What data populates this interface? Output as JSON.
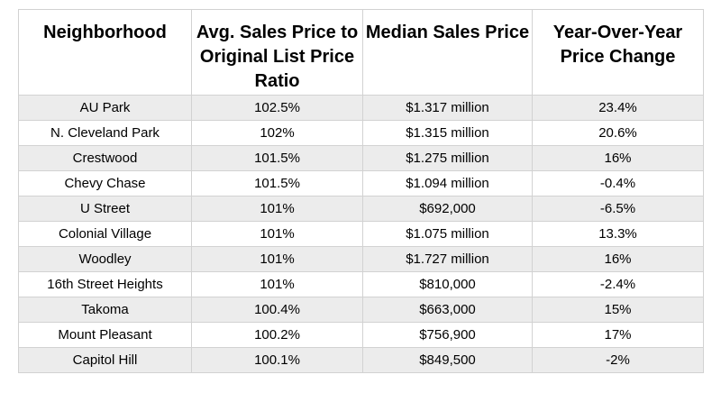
{
  "table": {
    "headers": [
      "Neighborhood",
      "Avg. Sales Price to Original List Price Ratio",
      "Median Sales Price",
      "Year-Over-Year Price Change"
    ],
    "rows": [
      [
        "AU Park",
        "102.5%",
        "$1.317 million",
        "23.4%"
      ],
      [
        "N. Cleveland Park",
        "102%",
        "$1.315 million",
        "20.6%"
      ],
      [
        "Crestwood",
        "101.5%",
        "$1.275 million",
        "16%"
      ],
      [
        "Chevy Chase",
        "101.5%",
        "$1.094 million",
        "-0.4%"
      ],
      [
        "U Street",
        "101%",
        "$692,000",
        "-6.5%"
      ],
      [
        "Colonial Village",
        "101%",
        "$1.075 million",
        "13.3%"
      ],
      [
        "Woodley",
        "101%",
        "$1.727 million",
        "16%"
      ],
      [
        "16th Street Heights",
        "101%",
        "$810,000",
        "-2.4%"
      ],
      [
        "Takoma",
        "100.4%",
        "$663,000",
        "15%"
      ],
      [
        "Mount Pleasant",
        "100.2%",
        "$756,900",
        "17%"
      ],
      [
        "Capitol Hill",
        "100.1%",
        "$849,500",
        "-2%"
      ]
    ]
  }
}
